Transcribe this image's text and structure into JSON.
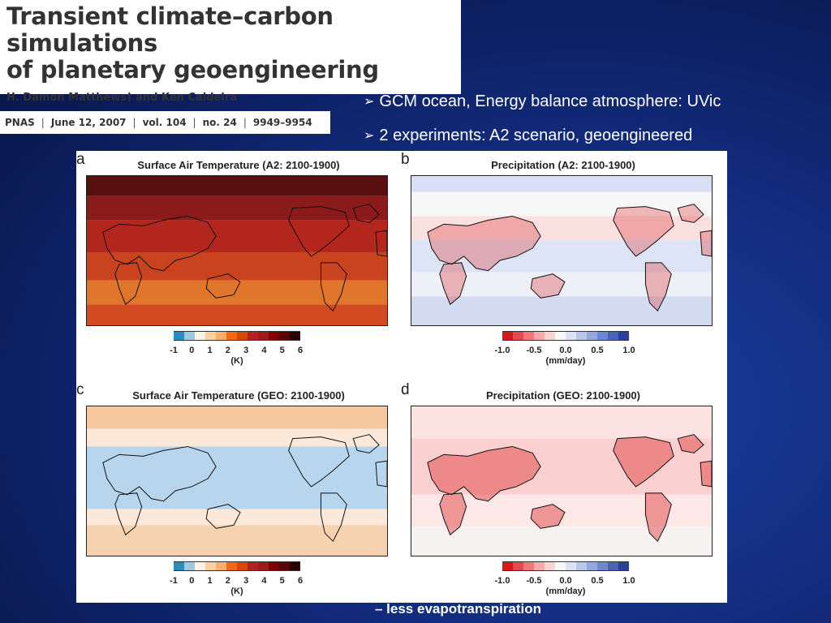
{
  "paper": {
    "title_line1": "Transient climate–carbon simulations",
    "title_line2": "of planetary geoengineering",
    "authors": "H. Damon Matthews† and Ken Caldeira",
    "citation": {
      "journal": "PNAS",
      "date": "June 12, 2007",
      "volume": "vol. 104",
      "issue": "no. 24",
      "pages": "9949–9954"
    }
  },
  "bullets": [
    "GCM ocean, Energy balance atmosphere:  UVic",
    "2 experiments: A2 scenario, geoengineered"
  ],
  "panels": [
    {
      "letter": "a",
      "title": "Surface Air Temperature (A2: 2100-1900)",
      "variable": "temperature",
      "ticks": [
        "-1",
        "0",
        "1",
        "2",
        "3",
        "4",
        "5",
        "6"
      ],
      "unit": "(K)",
      "colors": [
        "#2b8cbe",
        "#9ecae1",
        "#fdf0e6",
        "#fdd0a2",
        "#fdae6b",
        "#f16913",
        "#d94801",
        "#b22222",
        "#a11a1a",
        "#7f0000",
        "#5a0505",
        "#2b0000"
      ]
    },
    {
      "letter": "b",
      "title": "Precipitation (A2: 2100-1900)",
      "variable": "precipitation",
      "ticks": [
        "-1.0",
        "-0.5",
        "0.0",
        "0.5",
        "1.0"
      ],
      "unit": "(mm/day)",
      "colors": [
        "#d7191c",
        "#e34a4f",
        "#f07878",
        "#f8a8a8",
        "#fcd3d3",
        "#f7f7f7",
        "#dbe2f3",
        "#b8c6ea",
        "#94a8de",
        "#6f87cc",
        "#4a64b8",
        "#2c3f9e"
      ]
    },
    {
      "letter": "c",
      "title": "Surface Air Temperature (GEO: 2100-1900)",
      "variable": "temperature",
      "ticks": [
        "-1",
        "0",
        "1",
        "2",
        "3",
        "4",
        "5",
        "6"
      ],
      "unit": "(K)",
      "colors": [
        "#2b8cbe",
        "#9ecae1",
        "#fdf0e6",
        "#fdd0a2",
        "#fdae6b",
        "#f16913",
        "#d94801",
        "#b22222",
        "#a11a1a",
        "#7f0000",
        "#5a0505",
        "#2b0000"
      ]
    },
    {
      "letter": "d",
      "title": "Precipitation (GEO: 2100-1900)",
      "variable": "precipitation",
      "ticks": [
        "-1.0",
        "-0.5",
        "0.0",
        "0.5",
        "1.0"
      ],
      "unit": "(mm/day)",
      "colors": [
        "#d7191c",
        "#e34a4f",
        "#f07878",
        "#f8a8a8",
        "#fcd3d3",
        "#f7f7f7",
        "#dbe2f3",
        "#b8c6ea",
        "#94a8de",
        "#6f87cc",
        "#4a64b8",
        "#2c3f9e"
      ]
    }
  ],
  "footer_text": "– less evapotranspiration"
}
